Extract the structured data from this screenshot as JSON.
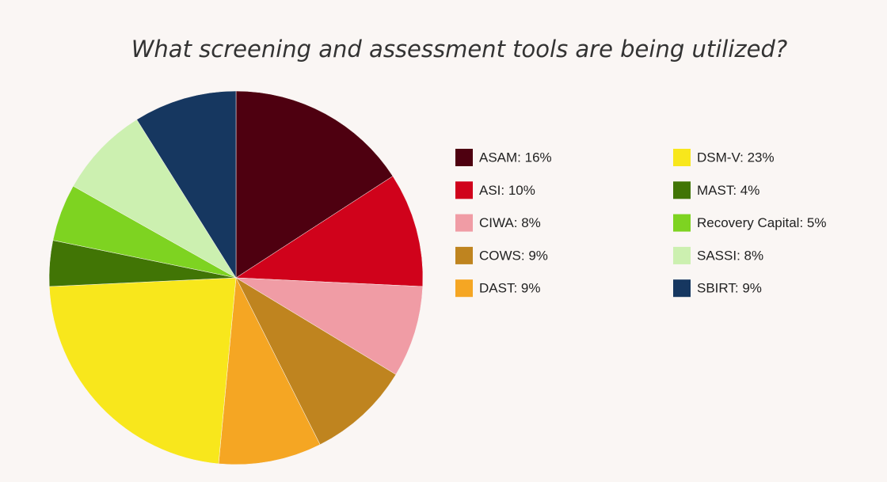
{
  "chart_data": {
    "type": "pie",
    "title": "What screening and assessment tools are being utilized?",
    "categories": [
      "ASAM: 16%",
      "ASI: 10%",
      "CIWA: 8%",
      "COWS: 9%",
      "DAST: 9%",
      "DSM-V: 23%",
      "MAST: 4%",
      "Recovery Capital: 5%",
      "SASSI: 8%",
      "SBIRT: 9%"
    ],
    "values": [
      16,
      10,
      8,
      9,
      9,
      23,
      4,
      5,
      8,
      9
    ],
    "colors": [
      "#4e0010",
      "#d0021b",
      "#f09ca5",
      "#bf841f",
      "#f5a623",
      "#f8e71c",
      "#417505",
      "#7ed321",
      "#ccf0b0",
      "#163760"
    ],
    "legend": "right"
  }
}
